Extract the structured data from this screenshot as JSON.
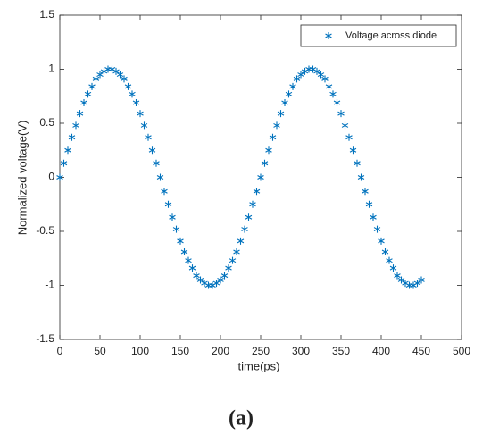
{
  "chart_data": {
    "type": "scatter",
    "xlabel": "time(ps)",
    "ylabel": "Normalized voltage(V)",
    "caption": "(a)",
    "xlim": [
      0,
      500
    ],
    "ylim": [
      -1.5,
      1.5
    ],
    "xticks": [
      0,
      50,
      100,
      150,
      200,
      250,
      300,
      350,
      400,
      450,
      500
    ],
    "yticks": [
      -1.5,
      -1,
      -0.5,
      0,
      0.5,
      1,
      1.5
    ],
    "legend": "upper right",
    "series": [
      {
        "name": "Voltage across diode",
        "color": "#0072bd",
        "x": [
          0,
          5,
          10,
          15,
          20,
          25,
          30,
          35,
          40,
          45,
          50,
          55,
          60,
          65,
          70,
          75,
          80,
          85,
          90,
          95,
          100,
          105,
          110,
          115,
          120,
          125,
          130,
          135,
          140,
          145,
          150,
          155,
          160,
          165,
          170,
          175,
          180,
          185,
          190,
          195,
          200,
          205,
          210,
          215,
          220,
          225,
          230,
          235,
          240,
          245,
          250,
          255,
          260,
          265,
          270,
          275,
          280,
          285,
          290,
          295,
          300,
          305,
          310,
          315,
          320,
          325,
          330,
          335,
          340,
          345,
          350,
          355,
          360,
          365,
          370,
          375,
          380,
          385,
          390,
          395,
          400,
          405,
          410,
          415,
          420,
          425,
          430,
          435,
          440,
          445,
          450
        ],
        "values": [
          0,
          0.13,
          0.25,
          0.37,
          0.48,
          0.59,
          0.69,
          0.77,
          0.84,
          0.91,
          0.95,
          0.98,
          1,
          1,
          0.98,
          0.95,
          0.91,
          0.84,
          0.77,
          0.69,
          0.59,
          0.48,
          0.37,
          0.25,
          0.13,
          0,
          -0.13,
          -0.25,
          -0.37,
          -0.48,
          -0.59,
          -0.69,
          -0.77,
          -0.84,
          -0.91,
          -0.95,
          -0.98,
          -1,
          -1,
          -0.98,
          -0.95,
          -0.91,
          -0.84,
          -0.77,
          -0.69,
          -0.59,
          -0.48,
          -0.37,
          -0.25,
          -0.13,
          0,
          0.13,
          0.25,
          0.37,
          0.48,
          0.59,
          0.69,
          0.77,
          0.84,
          0.91,
          0.95,
          0.98,
          1,
          1,
          0.98,
          0.95,
          0.91,
          0.84,
          0.77,
          0.69,
          0.59,
          0.48,
          0.37,
          0.25,
          0.13,
          0,
          -0.13,
          -0.25,
          -0.37,
          -0.48,
          -0.59,
          -0.69,
          -0.77,
          -0.84,
          -0.91,
          -0.95,
          -0.98,
          -1,
          -1,
          -0.98,
          -0.95
        ]
      }
    ]
  }
}
